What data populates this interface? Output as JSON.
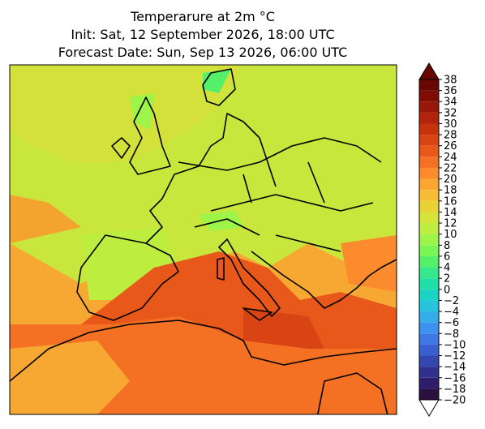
{
  "chart_data": {
    "type": "map",
    "title_lines": [
      "Temperarure at 2m °C",
      "Init: Sat, 12 September 2026, 18:00 UTC",
      "Forecast Date: Sun, Sep 13 2026, 06:00 UTC"
    ],
    "colorbar": {
      "ticks": [
        {
          "value": -20,
          "label": "−20"
        },
        {
          "value": -18,
          "label": "−18"
        },
        {
          "value": -16,
          "label": "−16"
        },
        {
          "value": -14,
          "label": "−14"
        },
        {
          "value": -12,
          "label": "−12"
        },
        {
          "value": -10,
          "label": "−10"
        },
        {
          "value": -8,
          "label": "−8"
        },
        {
          "value": -6,
          "label": "−6"
        },
        {
          "value": -4,
          "label": "−4"
        },
        {
          "value": -2,
          "label": "−2"
        },
        0,
        2,
        4,
        6,
        8,
        10,
        12,
        14,
        16,
        18,
        20,
        22,
        24,
        26,
        28,
        30,
        32,
        34,
        36,
        38
      ],
      "colors": [
        "#2a0f3f",
        "#2f1d6b",
        "#30308f",
        "#3447b0",
        "#3a5fd0",
        "#3d78e6",
        "#3b93ef",
        "#34acea",
        "#25c4dc",
        "#1ad3c2",
        "#1edfa7",
        "#35e98a",
        "#55f06a",
        "#7af554",
        "#9cf548",
        "#bced3f",
        "#d5e33a",
        "#e9d236",
        "#f6bd34",
        "#fba532",
        "#fb8b2c",
        "#f47023",
        "#e8581a",
        "#d94414",
        "#c7320e",
        "#b1230a",
        "#981706",
        "#7f0d03",
        "#680701"
      ],
      "over_color": "#680701",
      "under_color": "#ffffff"
    }
  }
}
